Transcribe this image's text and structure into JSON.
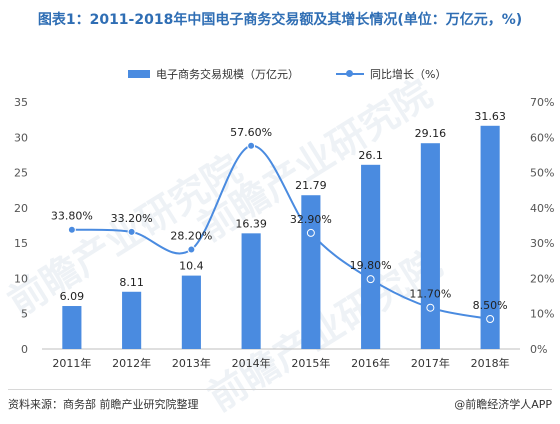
{
  "title": "图表1：2011-2018年中国电子商务交易额及其增长情况(单位：万亿元，%)",
  "legend": {
    "bar_label": "电子商务交易规模（万亿元）",
    "line_label": "同比增长（%）"
  },
  "footer": {
    "source": "资料来源：商务部 前瞻产业研究院整理",
    "brand": "@前瞻经济学人APP"
  },
  "watermarks": [
    "前瞻产业研究院",
    "前瞻产业研究院",
    "前瞻产业研究院"
  ],
  "colors": {
    "bar": "#4a8be0",
    "line": "#4a8be0",
    "title": "#2f6eb4"
  },
  "chart_data": {
    "type": "bar",
    "categories": [
      "2011年",
      "2012年",
      "2013年",
      "2014年",
      "2015年",
      "2016年",
      "2017年",
      "2018年"
    ],
    "series": [
      {
        "name": "电子商务交易规模（万亿元）",
        "type": "bar",
        "axis": "left",
        "values": [
          6.09,
          8.11,
          10.4,
          16.39,
          21.79,
          26.1,
          29.16,
          31.63
        ],
        "labels": [
          "6.09",
          "8.11",
          "10.4",
          "16.39",
          "21.79",
          "26.1",
          "29.16",
          "31.63"
        ]
      },
      {
        "name": "同比增长（%）",
        "type": "line",
        "axis": "right",
        "values": [
          33.8,
          33.2,
          28.2,
          57.6,
          32.9,
          19.8,
          11.7,
          8.5
        ],
        "labels": [
          "33.80%",
          "33.20%",
          "28.20%",
          "57.60%",
          "32.90%",
          "19.80%",
          "11.70%",
          "8.50%"
        ]
      }
    ],
    "y_left": {
      "ylim": [
        0,
        35
      ],
      "ticks": [
        "0",
        "5",
        "10",
        "15",
        "20",
        "25",
        "30",
        "35"
      ]
    },
    "y_right": {
      "ylim": [
        0,
        70
      ],
      "ticks": [
        "0%",
        "10%",
        "20%",
        "30%",
        "40%",
        "50%",
        "60%",
        "70%"
      ]
    },
    "grid": false,
    "legend_position": "top"
  }
}
